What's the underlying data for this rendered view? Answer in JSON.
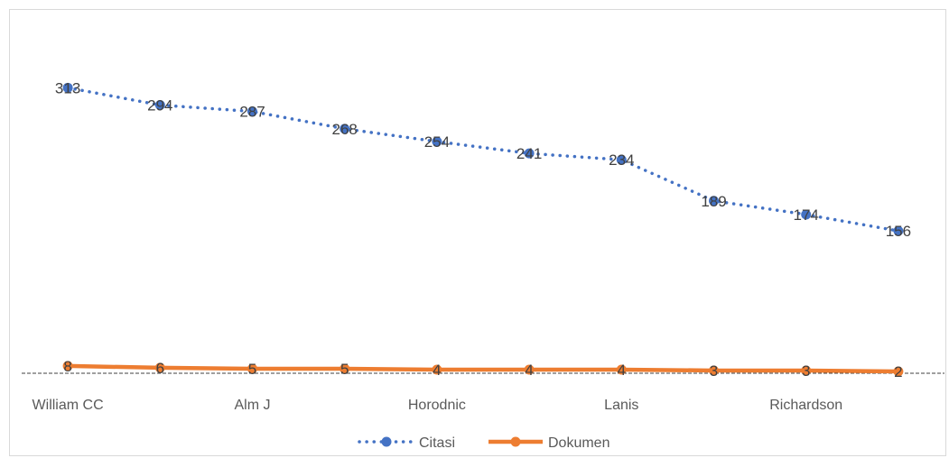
{
  "chart_data": {
    "type": "line",
    "title": "",
    "xlabel": "",
    "ylabel": "",
    "categories": [
      "William CC",
      "",
      "Alm J",
      "",
      "Horodnic",
      "",
      "Lanis",
      "",
      "Richardson",
      ""
    ],
    "tick_labels": [
      "William CC",
      "Alm J",
      "Horodnic",
      "Lanis",
      "Richardson"
    ],
    "ylim": [
      0,
      340
    ],
    "grid": false,
    "legend_position": "bottom",
    "series": [
      {
        "name": "Citasi",
        "values": [
          313,
          294,
          287,
          268,
          254,
          241,
          234,
          189,
          174,
          156
        ],
        "color": "#4472C4",
        "line_style": "dotted",
        "marker": "circle"
      },
      {
        "name": "Dokumen",
        "values": [
          8,
          6,
          5,
          5,
          4,
          4,
          4,
          3,
          3,
          2
        ],
        "color": "#ED7D31",
        "line_style": "solid",
        "marker": "circle"
      }
    ]
  }
}
